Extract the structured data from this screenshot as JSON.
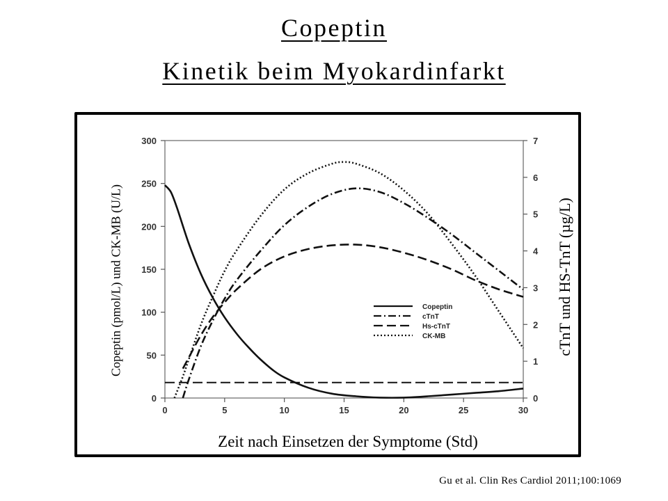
{
  "title_line1": "Copeptin",
  "title_line2": "Kinetik beim Myokardinfarkt",
  "citation": "Gu et al. Clin Res Cardiol 2011;100:1069",
  "chart_data": {
    "type": "line",
    "xlabel": "Zeit nach Einsetzen der Symptome (Std)",
    "ylabel_left": "Copeptin (pmol/L) und CK-MB (U/L)",
    "ylabel_right": "cTnT und HS-TnT (µg/L)",
    "xlim": [
      0,
      30
    ],
    "ylim_left": [
      0,
      300
    ],
    "ylim_right": [
      0,
      7
    ],
    "x_ticks": [
      "0",
      "5",
      "10",
      "15",
      "20",
      "25",
      "30"
    ],
    "y_left_ticks": [
      "0",
      "50",
      "100",
      "150",
      "200",
      "250",
      "300"
    ],
    "y_right_ticks": [
      "0",
      "1",
      "2",
      "3",
      "4",
      "5",
      "6",
      "7"
    ],
    "grid": false,
    "legend_position": "center-right",
    "threshold_line": {
      "axis": "left",
      "y": 18,
      "style": "dashed"
    },
    "series": [
      {
        "name": "Copeptin",
        "axis": "left",
        "style": "solid",
        "x": [
          0,
          0.5,
          1,
          2,
          3,
          4,
          5,
          6,
          7,
          8,
          9,
          10,
          12,
          14,
          16,
          18,
          20,
          22,
          24,
          26,
          28,
          30
        ],
        "y": [
          248,
          240,
          222,
          180,
          145,
          117,
          94,
          75,
          59,
          45,
          33,
          24,
          12,
          5,
          2,
          0.5,
          0.5,
          2,
          4,
          6,
          8,
          11
        ]
      },
      {
        "name": "cTnT",
        "axis": "right",
        "style": "dashdot",
        "x": [
          1.5,
          2,
          3,
          4,
          5,
          6,
          8,
          10,
          12,
          14,
          16,
          18,
          20,
          22,
          24,
          26,
          28,
          30
        ],
        "y": [
          0,
          0.5,
          1.4,
          2.1,
          2.7,
          3.2,
          4.0,
          4.7,
          5.2,
          5.55,
          5.7,
          5.6,
          5.3,
          4.9,
          4.45,
          3.95,
          3.45,
          2.95
        ]
      },
      {
        "name": "Hs-cTnT",
        "axis": "right",
        "style": "dashed",
        "x": [
          1.5,
          2,
          3,
          4,
          5,
          6,
          8,
          10,
          12,
          14,
          16,
          18,
          20,
          22,
          24,
          26,
          28,
          30
        ],
        "y": [
          0.8,
          1.1,
          1.7,
          2.2,
          2.6,
          2.95,
          3.5,
          3.85,
          4.05,
          4.15,
          4.17,
          4.1,
          3.95,
          3.75,
          3.5,
          3.2,
          2.95,
          2.75
        ]
      },
      {
        "name": "CK-MB",
        "axis": "left",
        "style": "dotted",
        "x": [
          0.8,
          1.5,
          2,
          3,
          4,
          5,
          6,
          8,
          10,
          12,
          14,
          15,
          16,
          18,
          20,
          22,
          24,
          26,
          28,
          30
        ],
        "y": [
          0,
          25,
          45,
          85,
          118,
          148,
          172,
          212,
          243,
          262,
          273,
          275,
          273,
          262,
          242,
          215,
          180,
          142,
          100,
          58
        ]
      }
    ]
  }
}
